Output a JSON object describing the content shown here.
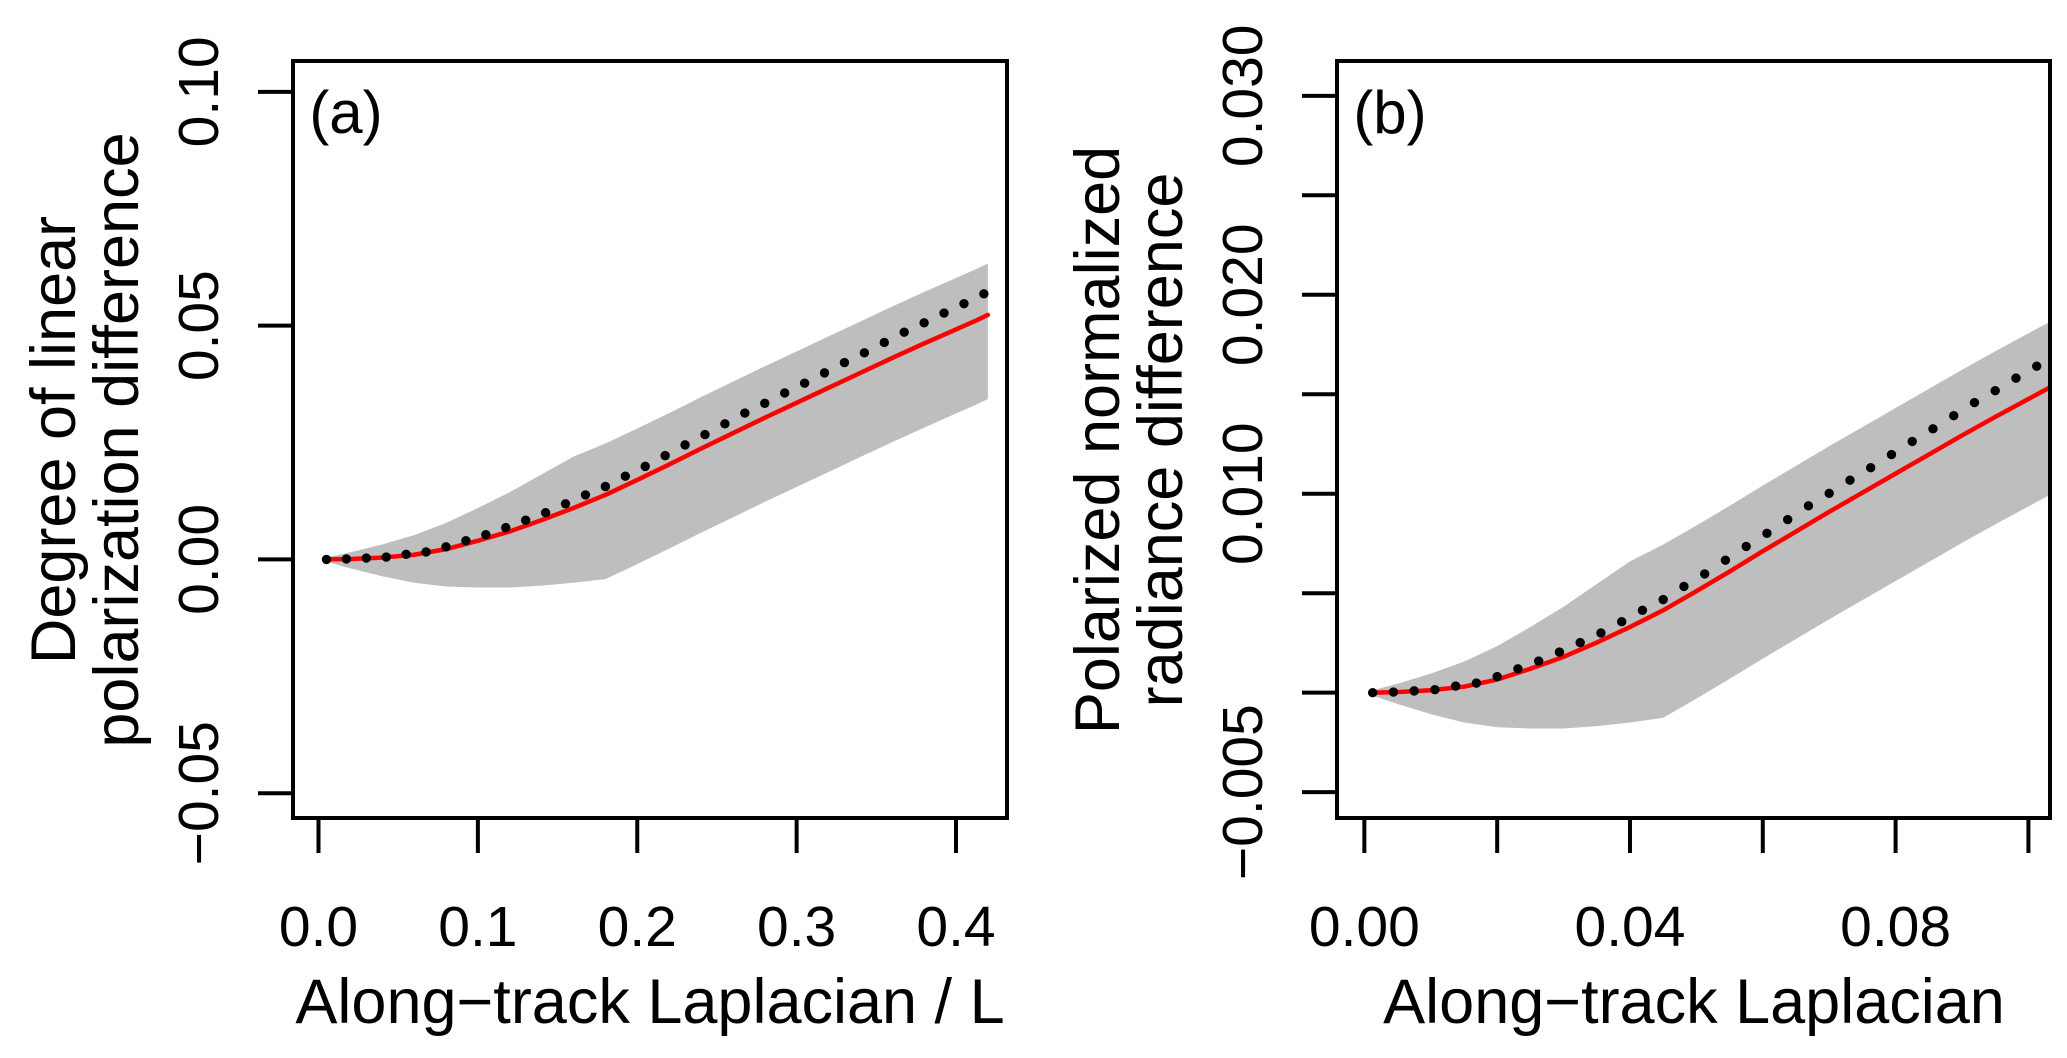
{
  "figure_background": "#ffffff",
  "chart_data": [
    {
      "type": "line",
      "panel_letter": "(a)",
      "xlabel": "Along−track Laplacian / L",
      "ylabel_lines": [
        "Degree of linear",
        "polarization difference"
      ],
      "xlim": [
        -0.016,
        0.432
      ],
      "ylim": [
        -0.0553,
        0.1066
      ],
      "x_ticks": {
        "values": [
          0.0,
          0.1,
          0.2,
          0.3,
          0.4
        ],
        "labels": [
          "0.0",
          "0.1",
          "0.2",
          "0.3",
          "0.4"
        ]
      },
      "y_ticks": {
        "values": [
          0.1,
          0.05,
          0.0,
          -0.05
        ],
        "labels": [
          "0.10",
          "0.05",
          "0.00",
          "−0.05"
        ]
      },
      "grid": false,
      "legend": null,
      "band_color": "#bebebe",
      "line_color": "#ff0000",
      "dot_color": "#000000",
      "band": {
        "x": [
          0.005,
          0.02,
          0.04,
          0.06,
          0.08,
          0.1,
          0.12,
          0.14,
          0.16,
          0.18,
          0.2,
          0.22,
          0.24,
          0.26,
          0.28,
          0.3,
          0.32,
          0.34,
          0.36,
          0.38,
          0.4,
          0.412,
          0.42
        ],
        "upper": [
          0.0004,
          0.0015,
          0.0032,
          0.0052,
          0.0078,
          0.011,
          0.0144,
          0.0182,
          0.022,
          0.0248,
          0.028,
          0.0313,
          0.0347,
          0.038,
          0.0413,
          0.0445,
          0.0477,
          0.0509,
          0.0541,
          0.0572,
          0.0602,
          0.062,
          0.0633
        ],
        "lower": [
          -0.0005,
          -0.0019,
          -0.0036,
          -0.005,
          -0.0058,
          -0.006,
          -0.006,
          -0.0056,
          -0.005,
          -0.0042,
          -0.001,
          0.0023,
          0.0057,
          0.009,
          0.0123,
          0.0155,
          0.0187,
          0.0219,
          0.0251,
          0.0282,
          0.0312,
          0.033,
          0.0343
        ]
      },
      "red_curve": {
        "x": [
          0.005,
          0.02,
          0.04,
          0.06,
          0.08,
          0.1,
          0.12,
          0.14,
          0.16,
          0.18,
          0.2,
          0.22,
          0.24,
          0.26,
          0.28,
          0.3,
          0.32,
          0.34,
          0.36,
          0.38,
          0.4,
          0.412,
          0.42
        ],
        "y": [
          0.0,
          0.0001,
          0.0004,
          0.001,
          0.0022,
          0.004,
          0.006,
          0.0084,
          0.011,
          0.0138,
          0.017,
          0.0203,
          0.0237,
          0.027,
          0.0303,
          0.0335,
          0.0367,
          0.0399,
          0.0431,
          0.0462,
          0.0492,
          0.051,
          0.0523
        ]
      },
      "dotted_curve": {
        "x": [
          0.005,
          0.0175,
          0.03,
          0.0425,
          0.055,
          0.0675,
          0.08,
          0.0925,
          0.105,
          0.1175,
          0.13,
          0.1425,
          0.155,
          0.1675,
          0.18,
          0.1925,
          0.205,
          0.2175,
          0.23,
          0.2425,
          0.255,
          0.2675,
          0.28,
          0.2925,
          0.305,
          0.3175,
          0.33,
          0.3425,
          0.355,
          0.3675,
          0.38,
          0.3925,
          0.405,
          0.4175
        ],
        "y": [
          0.0,
          0.0001,
          0.0003,
          0.0005,
          0.0011,
          0.0016,
          0.0027,
          0.004,
          0.0053,
          0.0068,
          0.0084,
          0.01,
          0.0119,
          0.0138,
          0.0156,
          0.0178,
          0.0199,
          0.0222,
          0.0245,
          0.0267,
          0.029,
          0.0313,
          0.0334,
          0.0356,
          0.0377,
          0.0399,
          0.0421,
          0.0442,
          0.0464,
          0.0486,
          0.0506,
          0.0527,
          0.0547,
          0.0568
        ]
      }
    },
    {
      "type": "line",
      "panel_letter": "(b)",
      "xlabel": "Along−track Laplacian",
      "ylabel_lines": [
        "Polarized normalized",
        "radiance difference"
      ],
      "xlim": [
        -0.00412,
        0.10325
      ],
      "ylim": [
        -0.0063,
        0.03175
      ],
      "x_ticks": {
        "values": [
          0.0,
          0.02,
          0.04,
          0.06,
          0.08,
          0.1
        ],
        "labels": [
          "0.00",
          null,
          "0.04",
          null,
          "0.08",
          null
        ]
      },
      "y_ticks": {
        "values": [
          0.03,
          0.025,
          0.02,
          0.015,
          0.01,
          0.005,
          0.0,
          -0.005
        ],
        "labels": [
          "0.030",
          null,
          "0.020",
          null,
          "0.010",
          null,
          null,
          "−0.005"
        ]
      },
      "grid": false,
      "legend": null,
      "band_color": "#bebebe",
      "line_color": "#ff0000",
      "dot_color": "#000000",
      "band": {
        "x": [
          0.00125,
          0.005,
          0.01,
          0.015,
          0.02,
          0.025,
          0.03,
          0.035,
          0.04,
          0.045,
          0.05,
          0.055,
          0.06,
          0.065,
          0.07,
          0.075,
          0.08,
          0.085,
          0.09,
          0.095,
          0.1,
          0.103,
          0.105
        ],
        "upper": [
          0.00012,
          0.00045,
          0.00096,
          0.00156,
          0.00234,
          0.0033,
          0.00432,
          0.00546,
          0.0066,
          0.00744,
          0.0084,
          0.00939,
          0.01041,
          0.0114,
          0.01239,
          0.01335,
          0.01431,
          0.01527,
          0.01623,
          0.01716,
          0.01806,
          0.0186,
          0.01899
        ],
        "lower": [
          -0.00015,
          -0.00057,
          -0.00108,
          -0.0015,
          -0.00174,
          -0.0018,
          -0.0018,
          -0.00168,
          -0.0015,
          -0.00126,
          -0.0003,
          0.00069,
          0.00171,
          0.0027,
          0.00369,
          0.00465,
          0.00561,
          0.00657,
          0.00753,
          0.00846,
          0.00936,
          0.0099,
          0.01029
        ]
      },
      "red_curve": {
        "x": [
          0.00125,
          0.005,
          0.01,
          0.015,
          0.02,
          0.025,
          0.03,
          0.035,
          0.04,
          0.045,
          0.05,
          0.055,
          0.06,
          0.065,
          0.07,
          0.075,
          0.08,
          0.085,
          0.09,
          0.095,
          0.1,
          0.103,
          0.105
        ],
        "y": [
          0.0,
          3e-05,
          0.00012,
          0.0003,
          0.00066,
          0.0012,
          0.0018,
          0.00252,
          0.0033,
          0.00414,
          0.0051,
          0.00609,
          0.00711,
          0.0081,
          0.00909,
          0.01005,
          0.01101,
          0.01197,
          0.01293,
          0.01386,
          0.01476,
          0.0153,
          0.01569
        ]
      },
      "dotted_curve": {
        "x": [
          0.00125,
          0.004375,
          0.0075,
          0.010625,
          0.01375,
          0.016875,
          0.02,
          0.023125,
          0.02625,
          0.029375,
          0.0325,
          0.035625,
          0.03875,
          0.041875,
          0.045,
          0.048125,
          0.05125,
          0.054375,
          0.0575,
          0.060625,
          0.06375,
          0.066875,
          0.07,
          0.073125,
          0.07625,
          0.079375,
          0.0825,
          0.085625,
          0.08875,
          0.091875,
          0.095,
          0.098125,
          0.10125
        ],
        "y": [
          0.0,
          3e-05,
          9e-05,
          0.00015,
          0.00033,
          0.00048,
          0.00081,
          0.0012,
          0.00159,
          0.00204,
          0.00252,
          0.003,
          0.00357,
          0.00414,
          0.00468,
          0.00534,
          0.00597,
          0.00666,
          0.00735,
          0.00801,
          0.0087,
          0.00939,
          0.01002,
          0.01068,
          0.01131,
          0.01197,
          0.01263,
          0.01326,
          0.01392,
          0.01458,
          0.01518,
          0.01581,
          0.01641
        ]
      }
    }
  ]
}
